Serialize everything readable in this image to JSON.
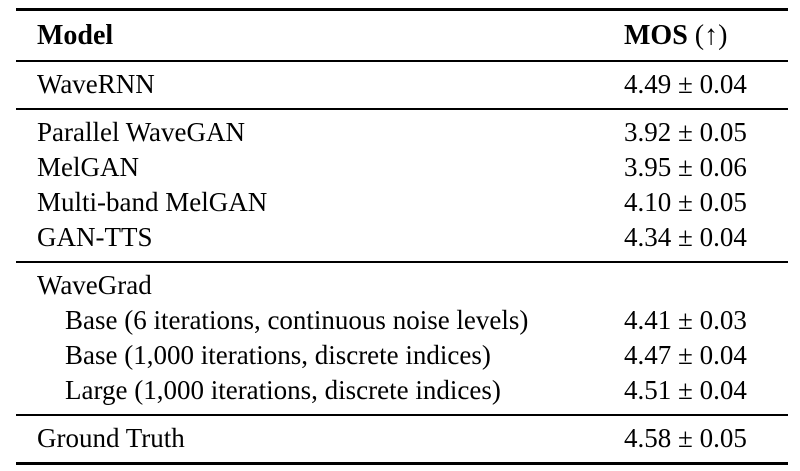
{
  "table": {
    "header": {
      "model_label": "Model",
      "mos_label": "MOS",
      "mos_suffix": " (↑)"
    },
    "sections": [
      {
        "rows": [
          {
            "model": "WaveRNN",
            "mos": "4.49 ± 0.04"
          }
        ]
      },
      {
        "rows": [
          {
            "model": "Parallel WaveGAN",
            "mos": "3.92 ± 0.05"
          },
          {
            "model": "MelGAN",
            "mos": "3.95 ± 0.06"
          },
          {
            "model": "Multi-band MelGAN",
            "mos": "4.10 ± 0.05"
          },
          {
            "model": "GAN-TTS",
            "mos": "4.34 ± 0.04"
          }
        ]
      },
      {
        "rows": [
          {
            "model": "WaveGrad",
            "mos": ""
          },
          {
            "model": "Base (6 iterations, continuous noise levels)",
            "mos": "4.41 ± 0.03"
          },
          {
            "model": "Base (1,000 iterations, discrete indices)",
            "mos": "4.47 ± 0.04"
          },
          {
            "model": "Large (1,000 iterations, discrete indices)",
            "mos": "4.51 ± 0.04"
          }
        ]
      },
      {
        "rows": [
          {
            "model": "Ground Truth",
            "mos": "4.58 ± 0.05"
          }
        ]
      }
    ],
    "colors": {
      "text": "#000000",
      "background": "#ffffff",
      "rule": "#000000"
    }
  }
}
